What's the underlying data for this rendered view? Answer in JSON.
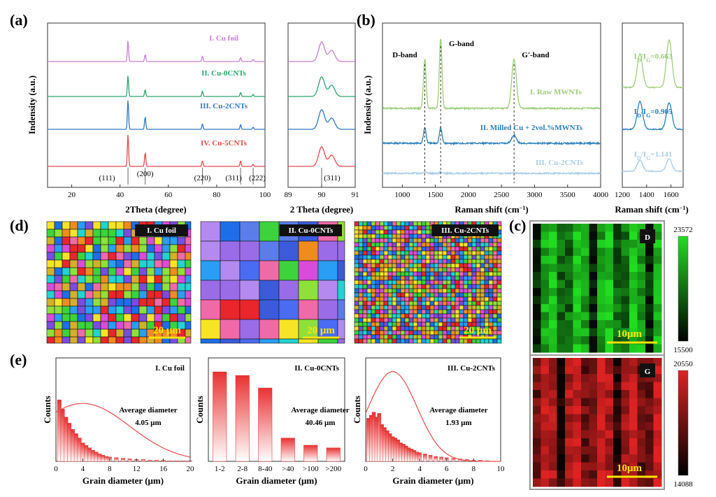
{
  "panel_a": {
    "letter": "(a)",
    "ylabel": "Indensity (a.u.)",
    "xlabel_main": "2Theta (degree)",
    "xlabel_inset": "2 Theta (degree)",
    "main_xticks": [
      "20",
      "40",
      "60",
      "80",
      "100"
    ],
    "inset_xticks": [
      "89",
      "90",
      "91"
    ],
    "peak_labels": [
      "(111)",
      "(200)",
      "(220)",
      "(311)",
      "(222)"
    ],
    "inset_peak_label": "(311)",
    "series": [
      {
        "name": "I. Cu foil",
        "color": "#c77fd4"
      },
      {
        "name": "II. Cu-0CNTs",
        "color": "#2ea56a"
      },
      {
        "name": "III. Cu-2CNTs",
        "color": "#2f78c8"
      },
      {
        "name": "IV. Cu-5CNTs",
        "color": "#e84a4a"
      }
    ]
  },
  "panel_b": {
    "letter": "(b)",
    "ylabel": "Indensity (a.u.)",
    "xlabel_main": "Raman shift (cm⁻¹)",
    "xlabel_inset": "Raman shift (cm⁻¹)",
    "main_xticks": [
      "1000",
      "1500",
      "2000",
      "2500",
      "3000",
      "3500",
      "4000"
    ],
    "inset_xticks": [
      "1200",
      "1400",
      "1600"
    ],
    "band_labels": [
      "D-band",
      "G-band",
      "G′-band"
    ],
    "series": [
      {
        "name": "I. Raw MWNTs",
        "color": "#9ccf7a"
      },
      {
        "name": "II. Milled Cu + 2vol.%MWNTs",
        "color": "#2a7fb8"
      },
      {
        "name": "III. Cu-2CNTs",
        "color": "#a8cce6"
      }
    ],
    "ratios": [
      {
        "prefix": "I",
        "sub1": "D",
        "mid": "/I",
        "sub2": "G",
        "value": "=0.663",
        "color": "#9ccf7a"
      },
      {
        "prefix": "I",
        "sub1": "D",
        "mid": "/I",
        "sub2": "G",
        "value": "=0.905",
        "color": "#2a7fb8"
      },
      {
        "prefix": "I",
        "sub1": "D",
        "mid": "/I",
        "sub2": "G",
        "value": "=1.141",
        "color": "#a8cce6"
      }
    ]
  },
  "panel_c": {
    "letter": "(c)",
    "maps": [
      {
        "tag": "D",
        "max": "23572",
        "min": "15500",
        "scale": "10μm",
        "color": "#22dd22"
      },
      {
        "tag": "G",
        "max": "20550",
        "min": "14088",
        "scale": "10μm",
        "color": "#dd2222"
      }
    ]
  },
  "panel_d": {
    "letter": "(d)",
    "images": [
      {
        "tag": "I. Cu foil",
        "scale": "20 μm"
      },
      {
        "tag": "II. Cu-0CNTs",
        "scale": "20 μm"
      },
      {
        "tag": "III. Cu-2CNTs",
        "scale": "20 μm"
      }
    ]
  },
  "panel_e": {
    "letter": "(e)",
    "ylabel": "Counts",
    "xlabel": "Grain diameter (μm)",
    "charts": [
      {
        "title": "I. Cu foil",
        "avg_label": "Average diameter",
        "avg_value": "4.05 μm",
        "xticks": [
          "0",
          "4",
          "8",
          "12",
          "16",
          "20"
        ]
      },
      {
        "title": "II. Cu-0CNTs",
        "avg_label": "Average diameter",
        "avg_value": "40.46 μm",
        "xticks": [
          "1-2",
          "2-8",
          "8-40",
          ">40",
          ">100",
          ">200"
        ]
      },
      {
        "title": "III. Cu-2CNTs",
        "avg_label": "Average diameter",
        "avg_value": "1.93 μm",
        "xticks": [
          "0",
          "2",
          "4",
          "6",
          "8",
          "10"
        ]
      }
    ]
  },
  "chart_data": [
    {
      "type": "bar",
      "title": "II. Cu-0CNTs",
      "categories": [
        "1-2",
        "2-8",
        "8-40",
        ">40",
        ">100",
        ">200"
      ],
      "values": [
        100,
        96,
        82,
        26,
        18,
        15
      ],
      "ylabel": "Counts",
      "xlabel": "Grain diameter (μm)"
    },
    {
      "type": "bar",
      "title": "I. Cu foil",
      "x": [
        0.5,
        1,
        1.5,
        2,
        2.5,
        3,
        3.5,
        4,
        4.5,
        5,
        5.5,
        6,
        6.5,
        7,
        7.5,
        8,
        9,
        10,
        11,
        12,
        13,
        14,
        15,
        16,
        17,
        18,
        19,
        20
      ],
      "values": [
        100,
        85,
        72,
        62,
        52,
        45,
        38,
        30,
        26,
        22,
        18,
        15,
        12,
        10,
        8,
        7,
        6,
        5,
        4,
        3,
        3,
        2,
        2,
        2,
        1,
        1,
        1,
        1
      ],
      "ylabel": "Counts",
      "xlabel": "Grain diameter (μm)"
    },
    {
      "type": "bar",
      "title": "III. Cu-2CNTs",
      "x": [
        0.2,
        0.4,
        0.6,
        0.8,
        1.0,
        1.2,
        1.4,
        1.6,
        1.8,
        2.0,
        2.2,
        2.4,
        2.6,
        2.8,
        3.0,
        3.2,
        3.4,
        3.6,
        3.8,
        4.0,
        4.4,
        4.8,
        5.2,
        5.6,
        6.0,
        6.5,
        7,
        7.5,
        8,
        8.5,
        9
      ],
      "values": [
        70,
        75,
        80,
        72,
        78,
        60,
        55,
        50,
        45,
        40,
        38,
        35,
        30,
        28,
        25,
        22,
        20,
        18,
        15,
        14,
        12,
        10,
        8,
        7,
        6,
        5,
        4,
        3,
        2,
        2,
        1
      ],
      "ylabel": "Counts",
      "xlabel": "Grain diameter (μm)"
    }
  ]
}
